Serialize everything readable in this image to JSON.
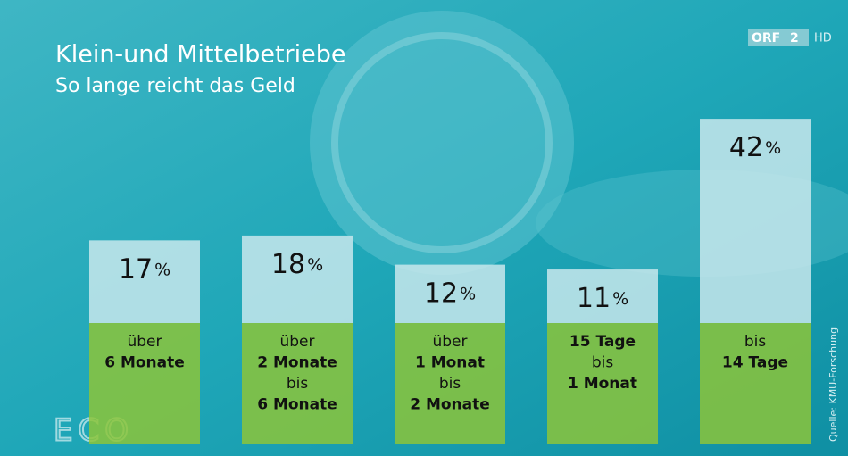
{
  "chart_data": {
    "type": "bar",
    "title": "Klein-und Mittelbetriebe",
    "subtitle": "So lange reicht das Geld",
    "categories": [
      [
        "über",
        "6 Monate"
      ],
      [
        "über",
        "2 Monate",
        "bis",
        "6 Monate"
      ],
      [
        "über",
        "1 Monat",
        "bis",
        "2 Monate"
      ],
      [
        "15 Tage",
        "bis",
        "1 Monat"
      ],
      [
        "bis",
        "14 Tage"
      ]
    ],
    "category_bold": [
      [
        false,
        true
      ],
      [
        false,
        true,
        false,
        true
      ],
      [
        false,
        true,
        false,
        true
      ],
      [
        true,
        false,
        true
      ],
      [
        false,
        true
      ]
    ],
    "values": [
      17,
      18,
      12,
      11,
      42
    ],
    "unit": "%",
    "color": "#c8e8ec",
    "label_color": "#8cc43a",
    "source": "Quelle: KMU-Forschung",
    "logo": "ORF",
    "logo_number": "2",
    "logo_hd": "HD",
    "show": "ECO"
  }
}
